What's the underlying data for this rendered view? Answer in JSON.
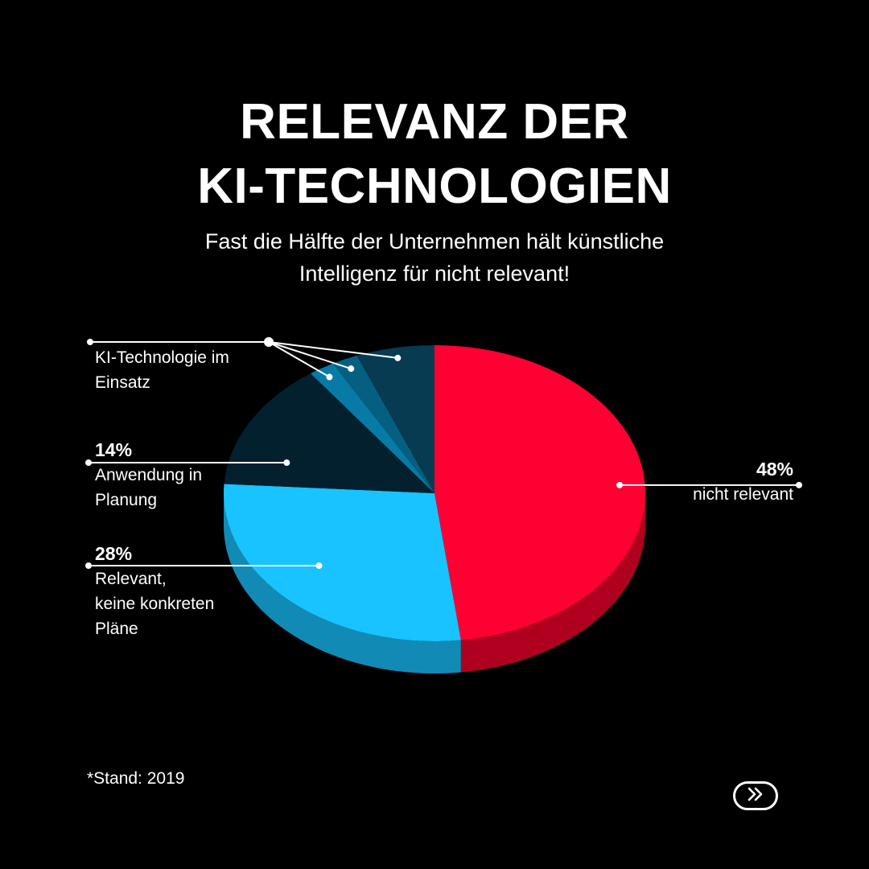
{
  "title": {
    "line1": "RELEVANZ DER",
    "line2": "KI-TECHNOLOGIEN"
  },
  "subtitle": {
    "line1": "Fast die Hälfte der Unternehmen hält künstliche",
    "line2": "Intelligenz für nicht relevant!"
  },
  "footnote": "*Stand: 2019",
  "next_icon": "double-chevron-right-icon",
  "chart_data": {
    "type": "pie",
    "style": "3d",
    "slices": [
      {
        "label": "nicht relevant",
        "value": 48,
        "value_label": "48%",
        "color": "#ff0033",
        "side_color": "#b0001f"
      },
      {
        "label": "Relevant, keine konkreten Pläne",
        "value": 28,
        "value_label": "28%",
        "color": "#18c3ff",
        "side_color": "#118bb5"
      },
      {
        "label": "Anwendung in Planung",
        "value": 14,
        "value_label": "14%",
        "color": "#03202f",
        "side_color": "#021821"
      },
      {
        "label": "KI-Technologie im Einsatz",
        "value": 2,
        "color": "#077aa6",
        "side_color": "#055f80"
      },
      {
        "label": "KI-Technologie im Einsatz",
        "value": 2,
        "color": "#055f80",
        "side_color": "#044a63"
      },
      {
        "label": "KI-Technologie im Einsatz",
        "value": 6,
        "color": "#063b52",
        "side_color": "#042b3b"
      }
    ],
    "labels": {
      "in_einsatz": [
        "KI-Technologie im",
        "Einsatz"
      ],
      "planung": [
        "Anwendung in",
        "Planung"
      ],
      "relevant": [
        "Relevant,",
        "keine konkreten",
        "Pläne"
      ],
      "nicht": [
        "nicht relevant"
      ]
    }
  }
}
